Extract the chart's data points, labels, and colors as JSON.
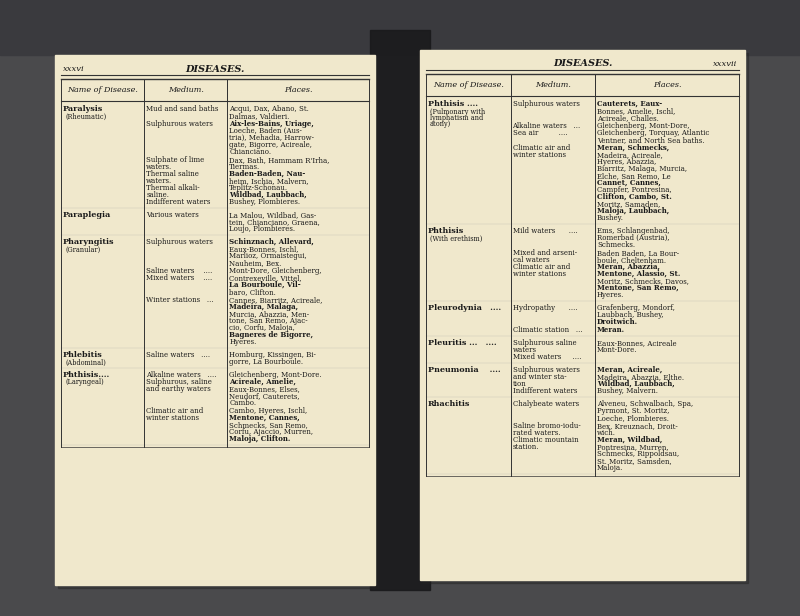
{
  "outer_bg": "#5a5a5a",
  "spine_color": "#2a2a2a",
  "page_bg": "#f0e8cc",
  "text_color": "#1a1a1a",
  "left_page": {
    "page_num": "xxxvi",
    "title": "DISEASES.",
    "col_headers": [
      "Name of Disease.",
      "Medium.",
      "Places."
    ],
    "rows": [
      {
        "disease_bold": "Paralysis",
        "disease_sub": "(Rheumatic)",
        "entries": [
          {
            "medium": "Mud and sand baths",
            "places": "Acqui, Dax, Abano, St.\nDalmas, Valdieri.",
            "places_bold": []
          },
          {
            "medium": "Sulphurous waters",
            "places": "Aix-les-Bains, Uriage,\nLoeche, Baden (Aus-\ntria), Mehadia, Harrow-\ngate, Bigorre, Acireale,\nChianciano.",
            "places_bold": [
              "Aix-les-Bains,"
            ]
          },
          {
            "medium": "Sulphate of lime\nwaters.\nThermal saline\nwaters.\nThermal alkali-\nsaline.\nIndifferent waters",
            "places": "Dax, Bath, Hammam R'Irha,\nTiermas.\nBaden-Baden, Nau-\nheim, Ischia, Malvern,\nTeplitz-Schonau.\nWildbad, Laubbach,\nBushey, Plombieres.",
            "places_bold": [
              "Baden-Baden,",
              "Wildbad,"
            ]
          }
        ]
      },
      {
        "disease_bold": "Paraplegia",
        "disease_sub": "",
        "entries": [
          {
            "medium": "Various waters",
            "places": "La Malou, Wildbad, Gas-\ntein, Chianciano, Graena,\nLoujo, Plombieres.",
            "places_bold": []
          }
        ]
      },
      {
        "disease_bold": "Pharyngitis",
        "disease_sub": "(Granular)",
        "entries": [
          {
            "medium": "Sulphurous waters",
            "places": "Schinznach, Allevard,\nEaux-Bonnes, Ischl,\nMarlioz, Ormaistegui,\nNauheim, Bex.",
            "places_bold": [
              "Schinznach,"
            ]
          },
          {
            "medium": "Saline waters    ....\nMixed waters    ....",
            "places": "Mont-Dore, Gleichenberg,\nContrexeville, Vittel,\nLa Bourboule, Vil-\nbaro, Clifton.",
            "places_bold": [
              "La Bourboule,"
            ]
          },
          {
            "medium": "Winter stations   ...",
            "places": "Cannes, Biarritz, Acireale,\nMadeira, Malaga,\nMurcia, Abazzia, Men-\ntone, San Remo, Ajac-\ncio, Corfu, Maloja,\nBagneres de Bigorre,\nHyeres.",
            "places_bold": [
              "Madeira,",
              "Maloja,",
              "Bagneres de Bigorre,"
            ]
          }
        ]
      },
      {
        "disease_bold": "Phlebitis",
        "disease_sub": "(Abdominal)",
        "entries": [
          {
            "medium": "Saline waters   ....",
            "places": "Homburg, Kissingen, Bi-\ngorre, La Bourboule.",
            "places_bold": [
              "La Bourboule."
            ]
          }
        ]
      },
      {
        "disease_bold": "Phthisis....",
        "disease_sub": "(Laryngeal)",
        "entries": [
          {
            "medium": "Alkaline waters   ....\nSulphurous, saline\nand earthy waters",
            "places": "Gleichenberg, Mont-Dore.\nAcireale, Amelie,\nEaux-Bonnes, Elses,\nNeudorf, Cauterets,\nCambo.",
            "places_bold": [
              "Acireale,",
              "Amelie,"
            ]
          },
          {
            "medium": "Climatic air and\nwinter stations",
            "places": "Cambo, Hyeres, Ischl,\nMentone, Cannes,\nSchmecks, San Remo,\nCorfu, Ajaccio, Murren,\nMaloja, Clifton.",
            "places_bold": [
              "Mentone,",
              "Maloja,"
            ]
          }
        ]
      }
    ]
  },
  "right_page": {
    "page_num": "xxxvii",
    "title": "DISEASES.",
    "col_headers": [
      "Name of Disease.",
      "Medium.",
      "Places."
    ],
    "rows": [
      {
        "disease_bold": "Phthisis ....",
        "disease_sub": "(Pulmonary with\nlymphatism and\natony)",
        "entries": [
          {
            "medium": "Sulphurous waters",
            "places": "Cauterets, Eaux-\nBonnes, Amelie, Ischl,\nAcireale, Challes.",
            "places_bold": [
              "Cauterets,"
            ]
          },
          {
            "medium": "Alkaline waters   ...\nSea air         ....",
            "places": "Gleichenberg, Mont-Dore,\nGleichenberg, Torquay, Atlantic\nVentner, and North Sea baths.",
            "places_bold": []
          },
          {
            "medium": "Climatic air and\nwinter stations",
            "places": "Meran, Schmecks,\nMadeira, Acireale,\nHyeres, Abazzia,\nBiarritz, Malaga, Murcia,\nElche, San Remo, Le\nCannet, Cannes,\nCampfer, Pontresina,\nClifton, Cambo, St.\nMoritz, Samaden,\nMaloja, Laubbach,\nBushey.",
            "places_bold": [
              "Meran,",
              "Cannet,",
              "Clifton,",
              "Maloja,"
            ]
          }
        ]
      },
      {
        "disease_bold": "Phthisis",
        "disease_sub": "(With erethism)",
        "entries": [
          {
            "medium": "Mild waters      ....",
            "places": "Ems, Schlangenbad,\nRomerbad (Austria),\nSchmecks.",
            "places_bold": []
          },
          {
            "medium": "Mixed and arseni-\ncal waters\nClimatic air and\nwinter stations",
            "places": "Baden Baden, La Bour-\nboule, Cheltenham.\nMeran, Abazzia,\nMentone, Alassio, St.\nMoritz, Schmecks, Davos,\nMentone, San Remo,\nHyeres.",
            "places_bold": [
              "Meran,",
              "Mentone,"
            ]
          }
        ]
      },
      {
        "disease_bold": "Pleurodynia   ....",
        "disease_sub": "",
        "entries": [
          {
            "medium": "Hydropathy      ....",
            "places": "Grafenberg, Mondorf,\nLaubbach, Bushey,\nDroitwich.",
            "places_bold": [
              "Droitwich."
            ]
          },
          {
            "medium": "Climatic station   ...",
            "places": "Meran.",
            "places_bold": [
              "Meran."
            ]
          }
        ]
      },
      {
        "disease_bold": "Pleuritis ...   ....",
        "disease_sub": "",
        "entries": [
          {
            "medium": "Sulphurous saline\nwaters\nMixed waters     ....",
            "places": "Eaux-Bonnes, Acireale\nMont-Dore.",
            "places_bold": []
          }
        ]
      },
      {
        "disease_bold": "Pneumonia    ....",
        "disease_sub": "",
        "entries": [
          {
            "medium": "Sulphurous waters\nand winter sta-\ntion\nIndifferent waters",
            "places": "Meran, Acireale,\nMadeira, Abazzia, Elthe.\nWildbad, Laubbach,\nBushey, Malvern.",
            "places_bold": [
              "Meran,",
              "Wildbad,"
            ]
          }
        ]
      },
      {
        "disease_bold": "Rhachitis",
        "disease_sub": "",
        "entries": [
          {
            "medium": "Chalybeate waters",
            "places": "Alveneu, Schwalbach, Spa,\nPyrmont, St. Moritz,\nLoeche, Plombieres.",
            "places_bold": []
          },
          {
            "medium": "Saline bromo-iodu-\nrated waters.\nClimatic mountain\nstation.",
            "places": "Bex, Kreuznach, Droit-\nwich.\nMeran, Wildbad,\nPontresina, Murren,\nSchmecks, Rippoldsau,\nSt. Moritz, Samsden,\nMaloja.",
            "places_bold": [
              "Meran,",
              "Wildbad,"
            ]
          }
        ]
      }
    ]
  }
}
